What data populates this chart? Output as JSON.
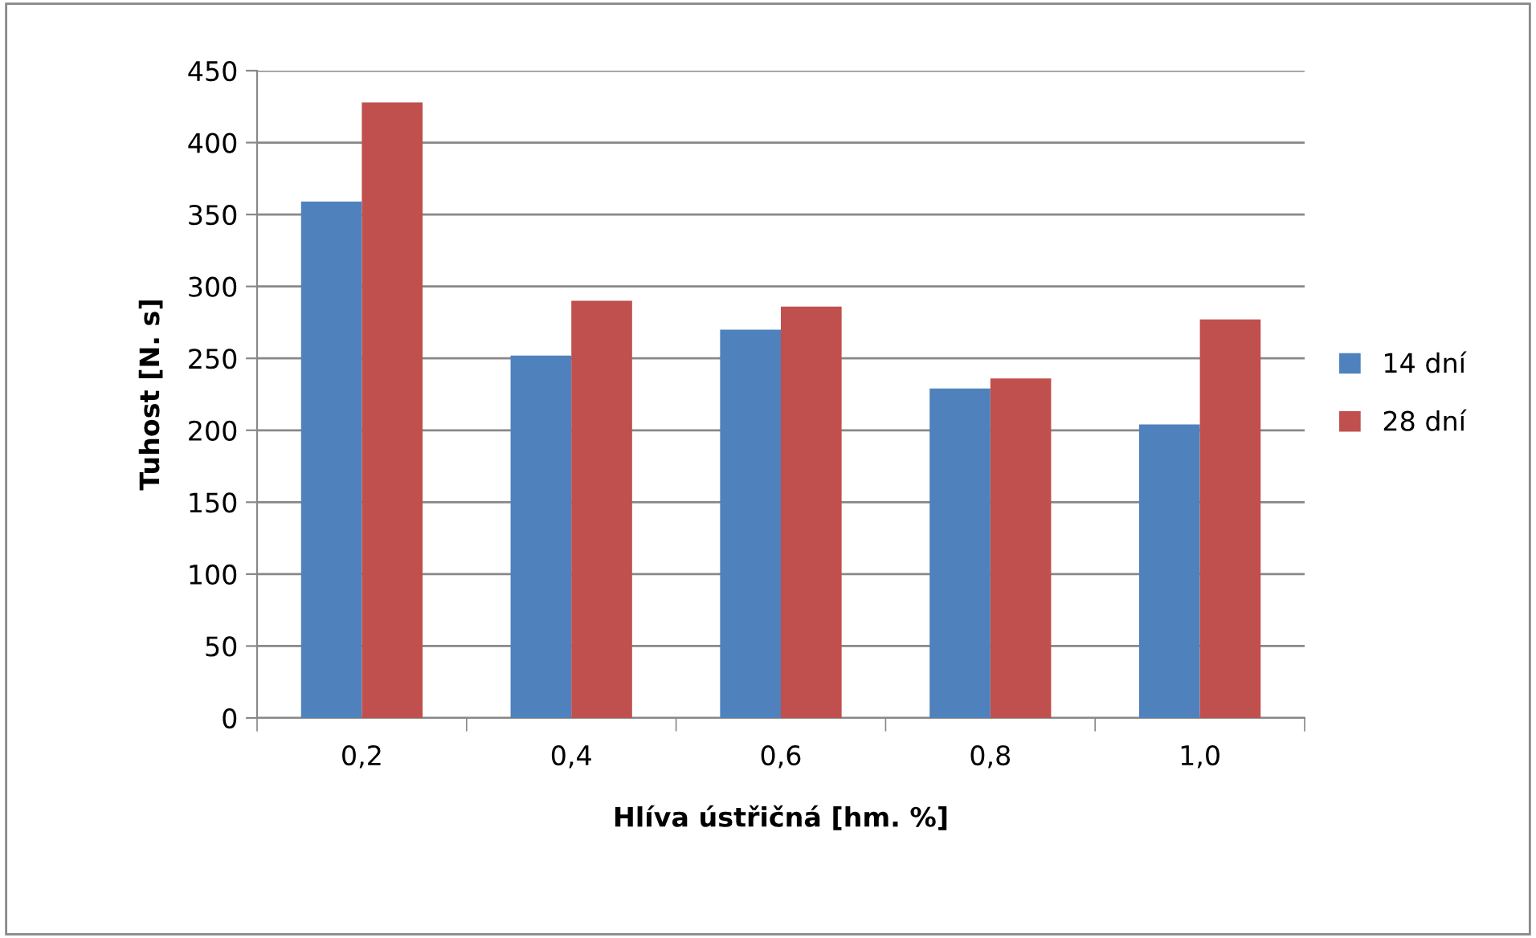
{
  "chart_data": {
    "type": "bar",
    "xlabel": "Hlíva ústřičná [hm. %]",
    "ylabel": "Tuhost [N. s]",
    "categories": [
      "0,2",
      "0,4",
      "0,6",
      "0,8",
      "1,0"
    ],
    "series": [
      {
        "name": "14 dní",
        "color": "#4f81bd",
        "values": [
          359,
          252,
          270,
          229,
          204
        ]
      },
      {
        "name": "28 dní",
        "color": "#c0504d",
        "values": [
          428,
          290,
          286,
          236,
          277
        ]
      }
    ],
    "ylim": [
      0,
      450
    ],
    "yticks": [
      0,
      50,
      100,
      150,
      200,
      250,
      300,
      350,
      400,
      450
    ],
    "grid": "y",
    "legend": "right"
  }
}
